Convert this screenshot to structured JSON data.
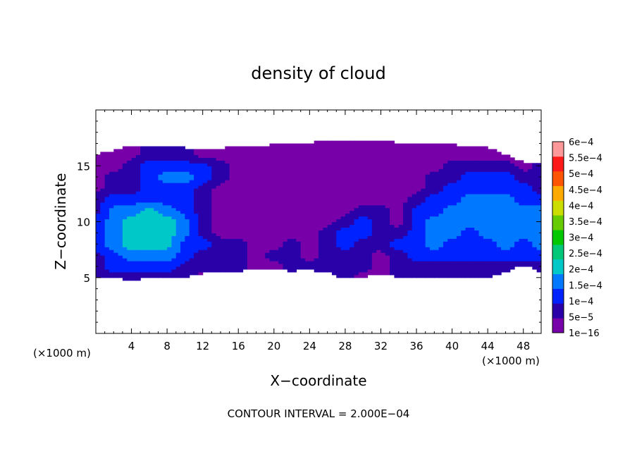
{
  "chart_data": {
    "type": "heatmap",
    "title": "density of cloud",
    "xlabel": "X−coordinate",
    "ylabel": "Z−coordinate",
    "x_unit_left": "(×1000 m)",
    "x_unit_right": "(×1000 m)",
    "xlim": [
      0,
      50
    ],
    "ylim": [
      0,
      20
    ],
    "x_ticks": [
      4,
      8,
      12,
      16,
      20,
      24,
      28,
      32,
      36,
      40,
      44,
      48
    ],
    "x_tick_labels": [
      "4",
      "8",
      "12",
      "16",
      "20",
      "24",
      "28",
      "32",
      "36",
      "40",
      "44",
      "48"
    ],
    "y_ticks": [
      5,
      10,
      15
    ],
    "y_tick_labels": [
      "5",
      "10",
      "15"
    ],
    "footer": "CONTOUR INTERVAL = 2.000E−04",
    "colorbar": {
      "labels": [
        "1e−16",
        "5e−5",
        "1e−4",
        "1.5e−4",
        "2e−4",
        "2.5e−4",
        "3e−4",
        "3.5e−4",
        "4e−4",
        "4.5e−4",
        "5e−4",
        "5.5e−4",
        "6e−4"
      ],
      "colors": [
        "#7800a8",
        "#2a00a8",
        "#0022ff",
        "#0078ff",
        "#00c8c8",
        "#00c878",
        "#00c800",
        "#66cc00",
        "#ccdd00",
        "#ffaa00",
        "#ff5500",
        "#ff1a1a",
        "#ff9999"
      ]
    },
    "field_grid": {
      "x": [
        0,
        2,
        4,
        6,
        8,
        10,
        12,
        14,
        16,
        18,
        20,
        22,
        24,
        26,
        28,
        30,
        32,
        34,
        36,
        38,
        40,
        42,
        44,
        46,
        48,
        50
      ],
      "z": [
        5,
        6,
        7,
        8,
        9,
        10,
        11,
        12,
        13,
        14,
        15,
        16
      ],
      "levels": [
        [
          1,
          1,
          1,
          1,
          1,
          1,
          0,
          0,
          1,
          0,
          0,
          0,
          0,
          0,
          1,
          0,
          0,
          1,
          1,
          1,
          1,
          1,
          1,
          1,
          0,
          0
        ],
        [
          1,
          2,
          2,
          2,
          2,
          1,
          1,
          1,
          1,
          0,
          0,
          1,
          1,
          1,
          1,
          1,
          0,
          1,
          1,
          1,
          1,
          1,
          1,
          1,
          1,
          1
        ],
        [
          1,
          2,
          3,
          3,
          3,
          2,
          1,
          1,
          1,
          0,
          1,
          1,
          0,
          1,
          1,
          1,
          0,
          1,
          2,
          2,
          2,
          2,
          2,
          2,
          2,
          2
        ],
        [
          2,
          3,
          4,
          4,
          4,
          2,
          2,
          1,
          1,
          0,
          0,
          1,
          0,
          1,
          2,
          1,
          1,
          2,
          2,
          3,
          2,
          2,
          2,
          3,
          2,
          3
        ],
        [
          2,
          3,
          4,
          4,
          4,
          3,
          1,
          0,
          0,
          0,
          0,
          0,
          0,
          1,
          2,
          2,
          1,
          1,
          2,
          3,
          3,
          2,
          3,
          3,
          3,
          3
        ],
        [
          2,
          3,
          4,
          4,
          4,
          3,
          1,
          0,
          0,
          0,
          0,
          0,
          0,
          0,
          1,
          2,
          1,
          0,
          2,
          3,
          3,
          3,
          3,
          3,
          3,
          3
        ],
        [
          1,
          3,
          3,
          4,
          3,
          2,
          1,
          0,
          0,
          0,
          0,
          0,
          0,
          0,
          0,
          1,
          1,
          0,
          2,
          2,
          3,
          3,
          3,
          3,
          3,
          3
        ],
        [
          1,
          2,
          2,
          2,
          2,
          2,
          1,
          0,
          0,
          0,
          0,
          0,
          0,
          0,
          0,
          0,
          0,
          0,
          1,
          2,
          2,
          3,
          3,
          3,
          2,
          2
        ],
        [
          0,
          1,
          1,
          2,
          2,
          2,
          1,
          0,
          0,
          0,
          0,
          0,
          0,
          0,
          0,
          0,
          0,
          0,
          0,
          1,
          2,
          2,
          2,
          2,
          2,
          1
        ],
        [
          0,
          1,
          1,
          2,
          3,
          3,
          2,
          1,
          0,
          0,
          0,
          0,
          0,
          0,
          0,
          0,
          0,
          0,
          0,
          1,
          1,
          2,
          2,
          2,
          1,
          1
        ],
        [
          0,
          0,
          1,
          2,
          2,
          2,
          2,
          1,
          0,
          0,
          0,
          0,
          0,
          0,
          0,
          0,
          0,
          0,
          0,
          0,
          1,
          1,
          1,
          1,
          0,
          1
        ],
        [
          0,
          0,
          0,
          1,
          1,
          1,
          0,
          0,
          0,
          0,
          0,
          0,
          0,
          0,
          0,
          0,
          0,
          0,
          0,
          0,
          0,
          0,
          0,
          0,
          0,
          0
        ]
      ],
      "domain": {
        "zmin_edge": [
          5,
          5,
          4.8,
          5,
          5,
          5,
          5.4,
          5.6,
          5.6,
          5.8,
          5.7,
          5.6,
          5.7,
          5.5,
          4.9,
          5,
          5.4,
          5,
          5,
          5,
          5,
          5,
          5,
          5.5,
          6.2,
          5.4
        ],
        "zmax_edge": [
          16,
          16.4,
          16.8,
          16.8,
          16.8,
          16.6,
          16.6,
          16.6,
          16.7,
          16.8,
          16.9,
          17,
          17.1,
          17.2,
          17.3,
          17.3,
          17.2,
          17.1,
          17,
          17,
          16.9,
          16.8,
          16.6,
          16.0,
          15.3,
          15.3
        ]
      }
    }
  }
}
